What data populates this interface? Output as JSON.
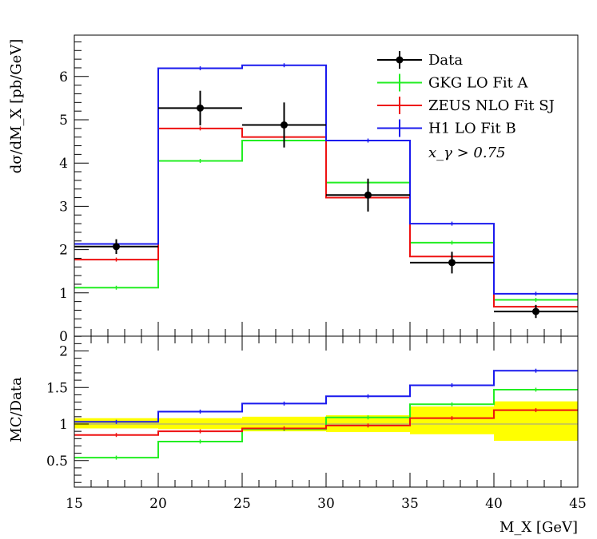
{
  "chart_data": [
    {
      "type": "line",
      "panel": "main",
      "ylabel": "dσ/dM_X [pb/GeV]",
      "xlim": [
        15,
        45
      ],
      "ylim": [
        0,
        7
      ],
      "yticks": [
        0,
        1,
        2,
        3,
        4,
        5,
        6
      ],
      "grid": false,
      "legend_position": "top-right",
      "annotation": "x_γ > 0.75",
      "bin_edges": [
        15,
        20,
        25,
        30,
        35,
        40,
        45
      ],
      "series": [
        {
          "name": "Data",
          "style": "points",
          "color": "#000000",
          "values": [
            2.07,
            5.27,
            4.88,
            3.26,
            1.7,
            0.57
          ],
          "errors": [
            0.17,
            0.4,
            0.52,
            0.38,
            0.25,
            0.15
          ]
        },
        {
          "name": "GKG LO Fit A",
          "style": "hist",
          "color": "#22ee22",
          "values": [
            1.12,
            4.05,
            4.52,
            3.55,
            2.16,
            0.84
          ]
        },
        {
          "name": "ZEUS NLO Fit SJ",
          "style": "hist",
          "color": "#ee1111",
          "values": [
            1.77,
            4.8,
            4.6,
            3.2,
            1.84,
            0.68
          ]
        },
        {
          "name": "H1 LO Fit B",
          "style": "hist",
          "color": "#1a1aee",
          "values": [
            2.13,
            6.19,
            6.26,
            4.52,
            2.6,
            0.98
          ]
        }
      ],
      "data_tick_labels": {
        "x": [
          "15",
          "20",
          "25",
          "30",
          "35",
          "40",
          "45"
        ],
        "y": [
          "0",
          "1",
          "2",
          "3",
          "4",
          "5",
          "6"
        ]
      }
    },
    {
      "type": "line",
      "panel": "ratio",
      "xlabel": "M_X [GeV]",
      "ylabel": "MC/Data",
      "xlim": [
        15,
        45
      ],
      "ylim": [
        0,
        2.3
      ],
      "yticks": [
        0.5,
        1,
        1.5,
        2
      ],
      "ytick_labels": [
        "0.5",
        "1",
        "1.5",
        "2"
      ],
      "xtick_labels": [
        "15",
        "20",
        "25",
        "30",
        "35",
        "40",
        "45"
      ],
      "bin_edges": [
        15,
        20,
        25,
        30,
        35,
        40,
        45
      ],
      "uncertainty_band": {
        "color": "#ffff00",
        "low": [
          0.94,
          0.93,
          0.9,
          0.89,
          0.86,
          0.77
        ],
        "high": [
          1.08,
          1.08,
          1.1,
          1.12,
          1.24,
          1.31
        ]
      },
      "series": [
        {
          "name": "GKG LO Fit A",
          "color": "#22ee22",
          "values": [
            0.54,
            0.76,
            0.93,
            1.09,
            1.27,
            1.47
          ]
        },
        {
          "name": "ZEUS NLO Fit SJ",
          "color": "#ee1111",
          "values": [
            0.85,
            0.9,
            0.94,
            0.98,
            1.08,
            1.19
          ]
        },
        {
          "name": "H1 LO Fit B",
          "color": "#1a1aee",
          "values": [
            1.03,
            1.17,
            1.28,
            1.38,
            1.53,
            1.73
          ]
        }
      ]
    }
  ]
}
